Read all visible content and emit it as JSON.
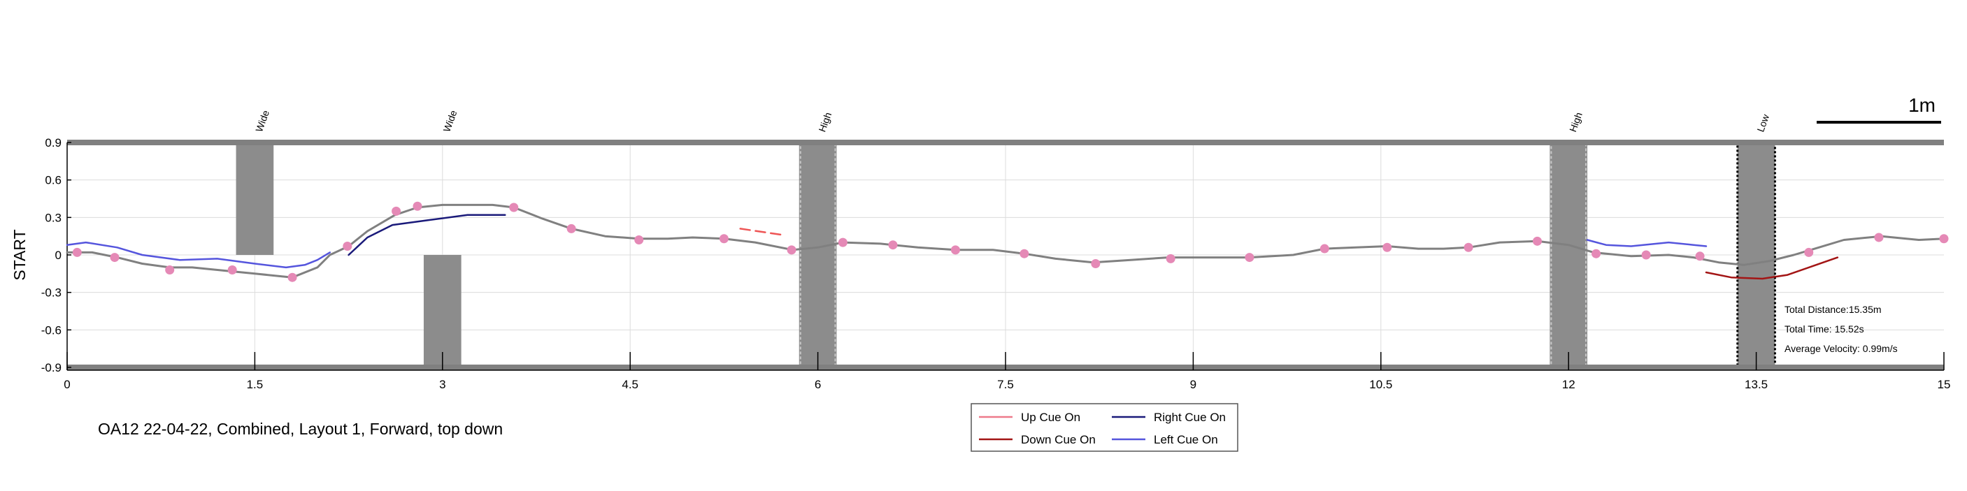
{
  "chart_data": {
    "type": "line",
    "title": "",
    "caption": "OA12 22-04-22, Combined, Layout 1, Forward, top down",
    "xlabel": "",
    "ylabel": "START",
    "xlim": [
      0,
      15
    ],
    "ylim": [
      -0.9,
      0.9
    ],
    "xticks": [
      0,
      1.5,
      3,
      4.5,
      6,
      7.5,
      9,
      10.5,
      12,
      13.5,
      15
    ],
    "xtick_labels": [
      "0",
      "1.5",
      "3",
      "4.5",
      "6",
      "7.5",
      "9",
      "10.5",
      "12",
      "13.5",
      "15"
    ],
    "yticks": [
      0.9,
      0.6,
      0.3,
      0,
      -0.3,
      -0.6,
      -0.9
    ],
    "ytick_labels": [
      "0.9",
      "0.6",
      "0.3",
      "0",
      "-0.3",
      "-0.6",
      "-0.9"
    ],
    "grid": true,
    "scale_bar": {
      "label": "1m",
      "length": 1
    },
    "obstacles": [
      {
        "label": "Wide",
        "type": "wide",
        "x_start": 1.35,
        "x_end": 1.65,
        "y_start": 0.0,
        "y_end": 0.9
      },
      {
        "label": "Wide",
        "type": "wide",
        "x_start": 2.85,
        "x_end": 3.15,
        "y_start": -0.9,
        "y_end": 0.0
      },
      {
        "label": "High",
        "type": "high",
        "x_start": 5.85,
        "x_end": 6.15,
        "y_start": -0.9,
        "y_end": 0.9
      },
      {
        "label": "High",
        "type": "high",
        "x_start": 11.85,
        "x_end": 12.15,
        "y_start": -0.9,
        "y_end": 0.9
      },
      {
        "label": "Low",
        "type": "low",
        "x_start": 13.35,
        "x_end": 13.65,
        "y_start": -0.9,
        "y_end": 0.9
      }
    ],
    "series": [
      {
        "name": "Path",
        "color": "#808080",
        "x": [
          0,
          0.2,
          0.4,
          0.6,
          0.82,
          1.0,
          1.3,
          1.5,
          1.8,
          2.0,
          2.1,
          2.25,
          2.4,
          2.62,
          2.8,
          3.0,
          3.2,
          3.4,
          3.57,
          3.8,
          4.03,
          4.3,
          4.57,
          4.8,
          5.0,
          5.25,
          5.5,
          5.8,
          6.0,
          6.2,
          6.5,
          6.8,
          7.1,
          7.4,
          7.65,
          7.9,
          8.2,
          8.5,
          8.8,
          9.1,
          9.45,
          9.8,
          10.05,
          10.3,
          10.55,
          10.8,
          11.0,
          11.2,
          11.45,
          11.75,
          12.0,
          12.2,
          12.5,
          12.8,
          13.0,
          13.2,
          13.4,
          13.6,
          13.8,
          14.0,
          14.2,
          14.5,
          14.8,
          15.0
        ],
        "y": [
          0.02,
          0.02,
          -0.02,
          -0.07,
          -0.1,
          -0.1,
          -0.13,
          -0.15,
          -0.18,
          -0.1,
          0.0,
          0.07,
          0.19,
          0.32,
          0.38,
          0.4,
          0.4,
          0.4,
          0.38,
          0.29,
          0.21,
          0.15,
          0.13,
          0.13,
          0.14,
          0.13,
          0.1,
          0.04,
          0.06,
          0.1,
          0.09,
          0.06,
          0.04,
          0.04,
          0.01,
          -0.03,
          -0.06,
          -0.04,
          -0.02,
          -0.02,
          -0.02,
          0.0,
          0.05,
          0.06,
          0.07,
          0.05,
          0.05,
          0.06,
          0.1,
          0.11,
          0.08,
          0.02,
          -0.01,
          0.0,
          -0.02,
          -0.06,
          -0.08,
          -0.05,
          0.0,
          0.06,
          0.12,
          0.15,
          0.12,
          0.13
        ],
        "markers": true,
        "marker_color": "#e589b6",
        "marker_x": [
          0.08,
          0.38,
          0.82,
          1.32,
          1.8,
          2.24,
          2.63,
          2.8,
          3.57,
          4.03,
          4.57,
          5.25,
          5.79,
          6.2,
          6.6,
          7.1,
          7.65,
          8.22,
          8.82,
          9.45,
          10.05,
          10.55,
          11.2,
          11.75,
          12.22,
          12.62,
          13.05,
          13.92,
          14.48,
          15.0
        ],
        "marker_y": [
          0.02,
          -0.02,
          -0.12,
          -0.12,
          -0.18,
          0.07,
          0.35,
          0.39,
          0.38,
          0.21,
          0.12,
          0.13,
          0.04,
          0.1,
          0.08,
          0.04,
          0.01,
          -0.07,
          -0.03,
          -0.02,
          0.05,
          0.06,
          0.06,
          0.11,
          0.01,
          0.0,
          -0.01,
          0.02,
          0.14,
          0.13
        ]
      },
      {
        "name": "Left Cue On",
        "color": "#5555dd",
        "x": [
          0,
          0.15,
          0.4,
          0.6,
          0.9,
          1.2,
          1.5,
          1.75,
          1.9,
          2.0,
          2.1
        ],
        "y": [
          0.08,
          0.1,
          0.06,
          0.0,
          -0.04,
          -0.03,
          -0.07,
          -0.1,
          -0.08,
          -0.04,
          0.02
        ]
      },
      {
        "name": "Left Cue On",
        "color": "#5555dd",
        "x": [
          12.15,
          12.3,
          12.5,
          12.8,
          13.0,
          13.1
        ],
        "y": [
          0.12,
          0.08,
          0.07,
          0.1,
          0.08,
          0.07
        ]
      },
      {
        "name": "Right Cue On",
        "color": "#1a1a7a",
        "x": [
          2.25,
          2.4,
          2.6,
          2.9,
          3.2,
          3.5
        ],
        "y": [
          0.0,
          0.14,
          0.24,
          0.28,
          0.32,
          0.32
        ]
      },
      {
        "name": "Up Cue On",
        "color": "#ee5555",
        "dashed": true,
        "x": [
          5.38,
          5.72
        ],
        "y": [
          0.21,
          0.16
        ]
      },
      {
        "name": "Down Cue On",
        "color": "#a31515",
        "x": [
          13.1,
          13.3,
          13.55,
          13.75,
          13.95,
          14.15
        ],
        "y": [
          -0.14,
          -0.18,
          -0.19,
          -0.16,
          -0.09,
          -0.02
        ]
      }
    ],
    "legend": {
      "placement": "bottom-center",
      "entries": [
        {
          "label": "Up Cue On",
          "color": "#ee7a8a"
        },
        {
          "label": "Right Cue On",
          "color": "#1a1a7a"
        },
        {
          "label": "Down Cue On",
          "color": "#a31515"
        },
        {
          "label": "Left Cue On",
          "color": "#5555dd"
        }
      ]
    },
    "stats": [
      {
        "label": "Total Distance:15.35m"
      },
      {
        "label": "Total Time: 15.52s"
      },
      {
        "label": "Average Velocity: 0.99m/s"
      }
    ]
  }
}
